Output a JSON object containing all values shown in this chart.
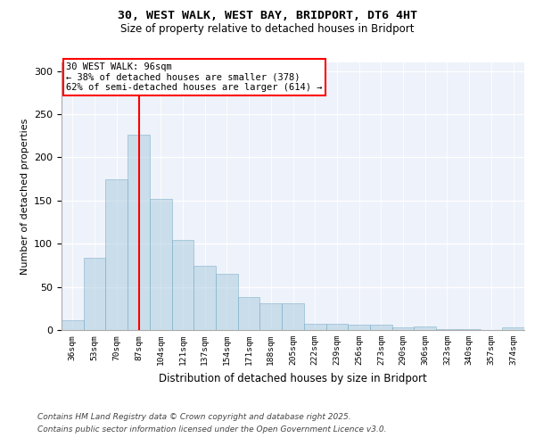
{
  "title1": "30, WEST WALK, WEST BAY, BRIDPORT, DT6 4HT",
  "title2": "Size of property relative to detached houses in Bridport",
  "xlabel": "Distribution of detached houses by size in Bridport",
  "ylabel": "Number of detached properties",
  "bar_labels": [
    "36sqm",
    "53sqm",
    "70sqm",
    "87sqm",
    "104sqm",
    "121sqm",
    "137sqm",
    "154sqm",
    "171sqm",
    "188sqm",
    "205sqm",
    "222sqm",
    "239sqm",
    "256sqm",
    "273sqm",
    "290sqm",
    "306sqm",
    "323sqm",
    "340sqm",
    "357sqm",
    "374sqm"
  ],
  "bar_values": [
    11,
    84,
    175,
    226,
    152,
    104,
    74,
    65,
    38,
    31,
    31,
    7,
    7,
    6,
    6,
    3,
    4,
    1,
    1,
    0,
    3
  ],
  "bar_color": "#aecde0",
  "bar_edge_color": "#7bafc8",
  "bar_alpha": 0.55,
  "vline_color": "red",
  "annotation_text": "30 WEST WALK: 96sqm\n← 38% of detached houses are smaller (378)\n62% of semi-detached houses are larger (614) →",
  "annotation_box_color": "white",
  "annotation_box_edge": "red",
  "ylim": [
    0,
    310
  ],
  "yticks": [
    0,
    50,
    100,
    150,
    200,
    250,
    300
  ],
  "background_color": "#eef2fa",
  "footer1": "Contains HM Land Registry data © Crown copyright and database right 2025.",
  "footer2": "Contains public sector information licensed under the Open Government Licence v3.0."
}
